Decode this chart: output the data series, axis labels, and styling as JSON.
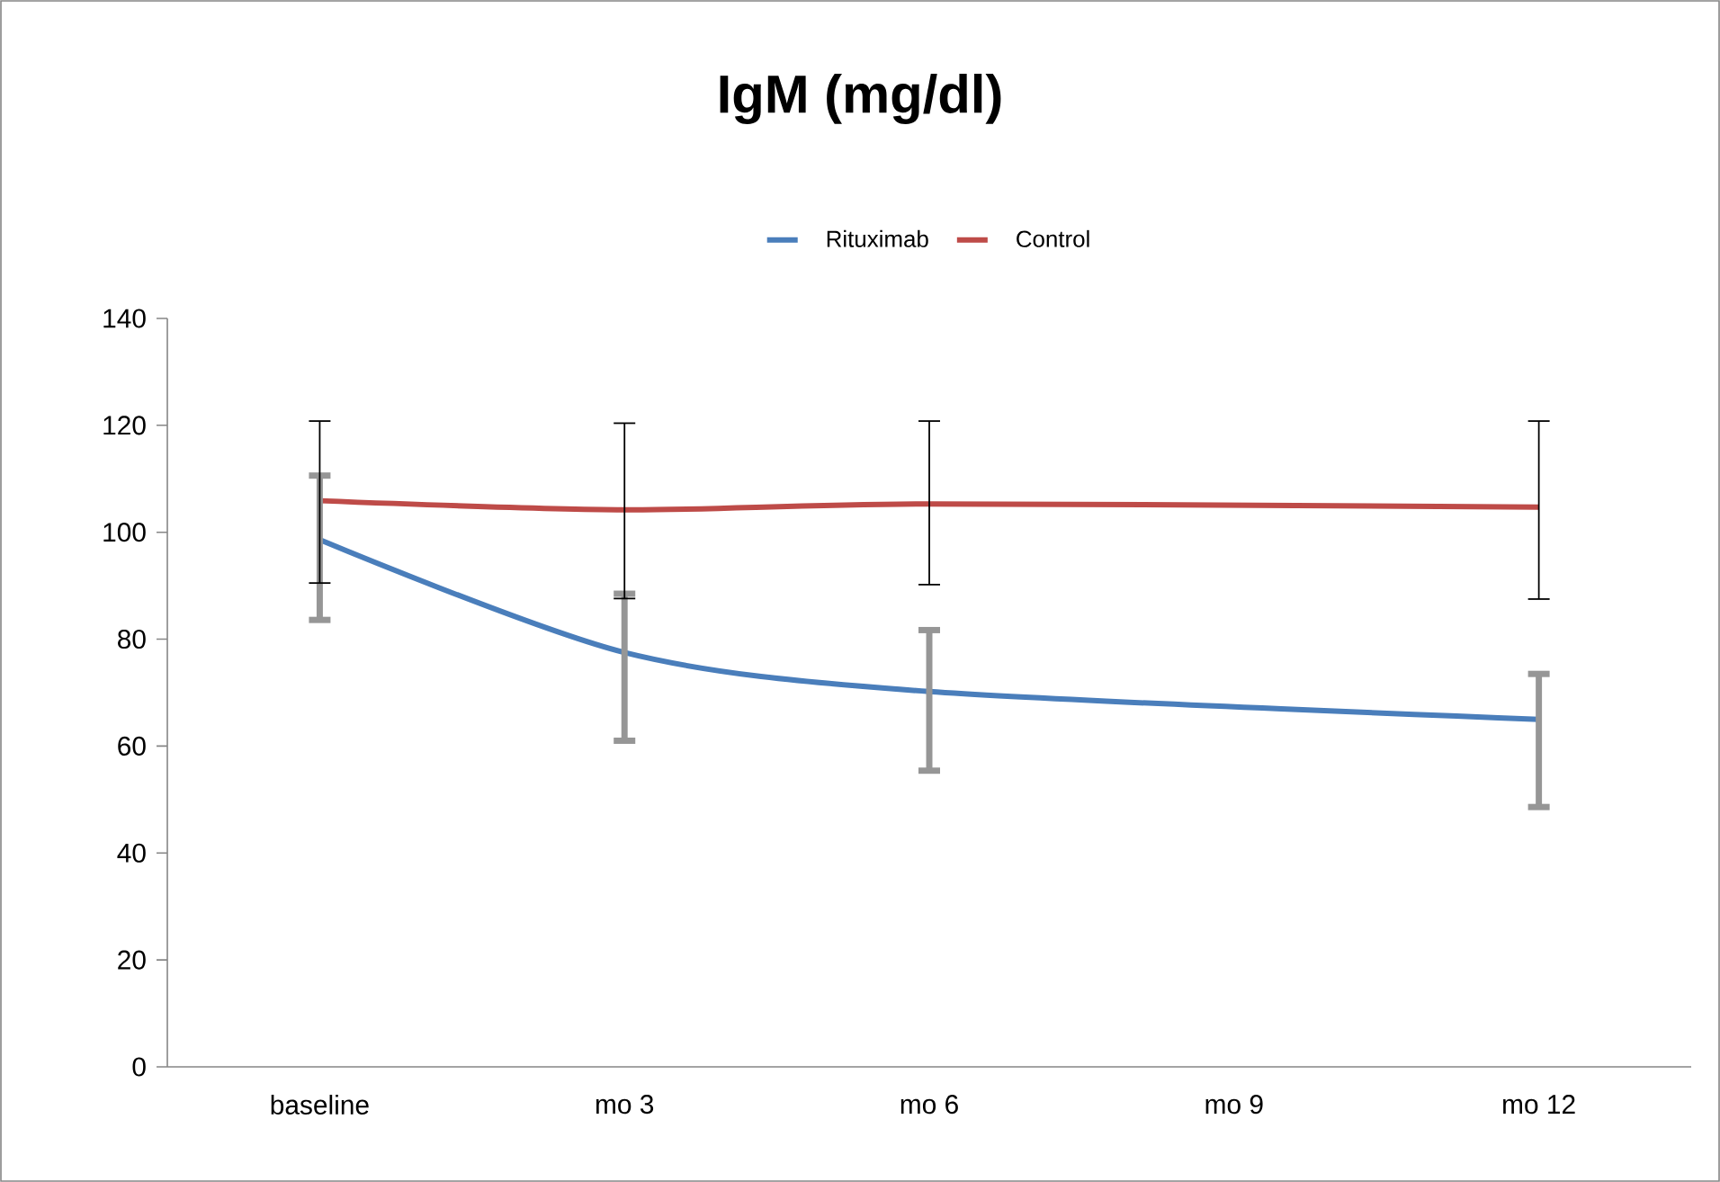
{
  "chart_data": {
    "type": "line",
    "title": "IgM (mg/dl)",
    "categories": [
      "baseline",
      "mo 3",
      "mo 6",
      "mo 9",
      "mo 12"
    ],
    "series": [
      {
        "name": "Rituximab",
        "color": "#4a7ebb",
        "values": [
          98.6,
          77.5,
          70.2,
          null,
          65.0
        ],
        "errors": [
          [
            83.6,
            110.6
          ],
          [
            61.0,
            88.5
          ],
          [
            55.4,
            81.7
          ],
          null,
          [
            48.6,
            73.5
          ]
        ]
      },
      {
        "name": "Control",
        "color": "#be4b48",
        "values": [
          105.9,
          104.2,
          105.3,
          null,
          104.7
        ],
        "errors": [
          [
            90.5,
            120.8
          ],
          [
            87.6,
            120.4
          ],
          [
            90.2,
            120.8
          ],
          null,
          [
            87.5,
            120.8
          ]
        ]
      }
    ],
    "ylim": [
      0,
      140
    ],
    "yticks": [
      0,
      20,
      40,
      60,
      80,
      100,
      120,
      140
    ],
    "legend": "top",
    "grid": false,
    "marker": "none",
    "line_style": "solid"
  }
}
